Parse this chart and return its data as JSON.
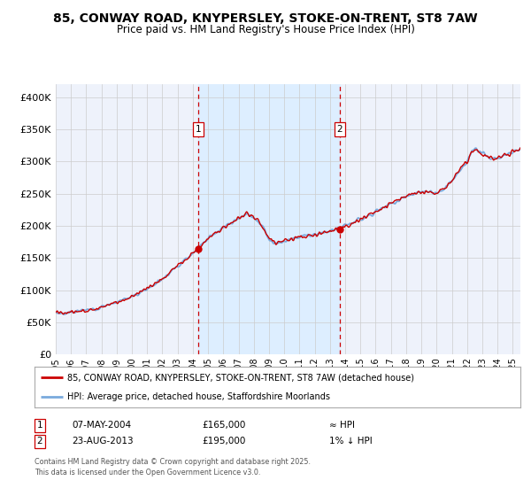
{
  "title_line1": "85, CONWAY ROAD, KNYPERSLEY, STOKE-ON-TRENT, ST8 7AW",
  "title_line2": "Price paid vs. HM Land Registry's House Price Index (HPI)",
  "x_start": 1995.0,
  "x_end": 2025.5,
  "y_min": 0,
  "y_max": 420000,
  "y_ticks": [
    0,
    50000,
    100000,
    150000,
    200000,
    250000,
    300000,
    350000,
    400000
  ],
  "y_tick_labels": [
    "£0",
    "£50K",
    "£100K",
    "£150K",
    "£200K",
    "£250K",
    "£300K",
    "£350K",
    "£400K"
  ],
  "purchase1_x": 2004.35,
  "purchase1_y": 165000,
  "purchase1_label": "1",
  "purchase1_date": "07-MAY-2004",
  "purchase1_price": "£165,000",
  "purchase1_hpi": "≈ HPI",
  "purchase2_x": 2013.64,
  "purchase2_y": 195000,
  "purchase2_label": "2",
  "purchase2_date": "23-AUG-2013",
  "purchase2_price": "£195,000",
  "purchase2_hpi": "1% ↓ HPI",
  "line_color_red": "#cc0000",
  "line_color_blue": "#7aaadd",
  "shade_color": "#ddeeff",
  "vline_color": "#cc0000",
  "background_color": "#ffffff",
  "plot_bg_color": "#eef2fb",
  "grid_color": "#cccccc",
  "legend_entry1": "85, CONWAY ROAD, KNYPERSLEY, STOKE-ON-TRENT, ST8 7AW (detached house)",
  "legend_entry2": "HPI: Average price, detached house, Staffordshire Moorlands",
  "footer1": "Contains HM Land Registry data © Crown copyright and database right 2025.",
  "footer2": "This data is licensed under the Open Government Licence v3.0.",
  "x_ticks": [
    1995,
    1996,
    1997,
    1998,
    1999,
    2000,
    2001,
    2002,
    2003,
    2004,
    2005,
    2006,
    2007,
    2008,
    2009,
    2010,
    2011,
    2012,
    2013,
    2014,
    2015,
    2016,
    2017,
    2018,
    2019,
    2020,
    2021,
    2022,
    2023,
    2024,
    2025
  ],
  "base_years": [
    1995.0,
    1995.5,
    1996.0,
    1996.5,
    1997.0,
    1997.5,
    1998.0,
    1998.5,
    1999.0,
    1999.5,
    2000.0,
    2000.5,
    2001.0,
    2001.5,
    2002.0,
    2002.5,
    2003.0,
    2003.5,
    2004.0,
    2004.3,
    2004.5,
    2005.0,
    2005.5,
    2006.0,
    2006.5,
    2007.0,
    2007.3,
    2007.6,
    2008.0,
    2008.3,
    2008.6,
    2009.0,
    2009.3,
    2009.6,
    2010.0,
    2010.5,
    2011.0,
    2011.5,
    2012.0,
    2012.5,
    2013.0,
    2013.3,
    2013.6,
    2014.0,
    2014.5,
    2015.0,
    2015.5,
    2016.0,
    2016.5,
    2017.0,
    2017.5,
    2018.0,
    2018.5,
    2019.0,
    2019.5,
    2020.0,
    2020.3,
    2020.6,
    2021.0,
    2021.3,
    2021.6,
    2022.0,
    2022.3,
    2022.6,
    2023.0,
    2023.3,
    2023.6,
    2024.0,
    2024.3,
    2024.6,
    2025.0,
    2025.5
  ],
  "base_vals": [
    65000,
    64000,
    66000,
    67500,
    69000,
    71000,
    74000,
    78000,
    82000,
    86000,
    90000,
    96000,
    102000,
    110000,
    118000,
    128000,
    138000,
    148000,
    158000,
    162000,
    170000,
    182000,
    190000,
    196000,
    204000,
    211000,
    216000,
    218000,
    214000,
    207000,
    198000,
    180000,
    174000,
    173000,
    176000,
    181000,
    183000,
    185000,
    187000,
    189000,
    191000,
    193000,
    196000,
    200000,
    205000,
    211000,
    216000,
    222000,
    228000,
    234000,
    240000,
    246000,
    249000,
    252000,
    254000,
    251000,
    254000,
    260000,
    270000,
    280000,
    290000,
    298000,
    315000,
    320000,
    312000,
    308000,
    304000,
    306000,
    309000,
    312000,
    315000,
    318000
  ]
}
